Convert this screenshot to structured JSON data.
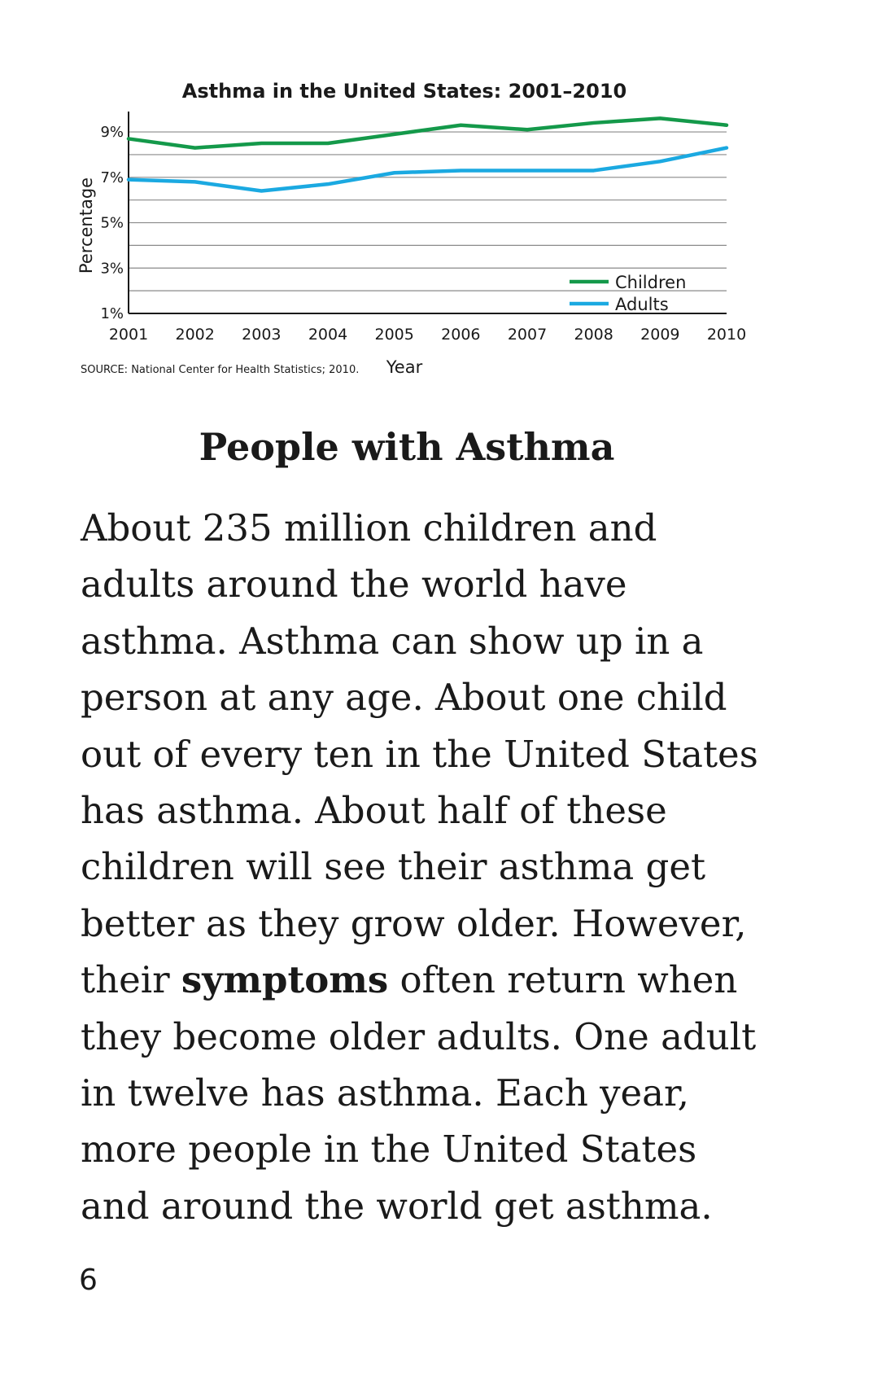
{
  "chart_data": {
    "type": "line",
    "title": "Asthma in the United States: 2001–2010",
    "xlabel": "Year",
    "ylabel": "Percentage",
    "x": [
      2001,
      2002,
      2003,
      2004,
      2005,
      2006,
      2007,
      2008,
      2009,
      2010
    ],
    "x_tick_labels": [
      "2001",
      "2002",
      "2003",
      "2004",
      "2005",
      "2006",
      "2007",
      "2008",
      "2009",
      "2010"
    ],
    "y_tick_labels": [
      "9%",
      "7%",
      "5%",
      "3%",
      "1%"
    ],
    "y_tick_values": [
      9,
      7,
      5,
      3,
      1
    ],
    "ylim": [
      1,
      9.9
    ],
    "grid": true,
    "legend_position": "bottom-right",
    "series": [
      {
        "name": "Children",
        "color": "#14994a",
        "values": [
          8.7,
          8.3,
          8.5,
          8.5,
          8.9,
          9.3,
          9.1,
          9.4,
          9.6,
          9.3
        ]
      },
      {
        "name": "Adults",
        "color": "#1ba9e1",
        "values": [
          6.9,
          6.8,
          6.4,
          6.7,
          7.2,
          7.3,
          7.3,
          7.3,
          7.7,
          8.3
        ]
      }
    ],
    "source": "SOURCE: National Center for Health Statistics; 2010."
  },
  "heading": "People with Asthma",
  "paragraph_lines": [
    {
      "text": "About 235 million children and"
    },
    {
      "text": "adults around the world have"
    },
    {
      "text": "asthma. Asthma can show up in a"
    },
    {
      "text": "person at any age. About one child"
    },
    {
      "text": "out of every ten in the United States"
    },
    {
      "text": "has asthma. About half of these"
    },
    {
      "text": "children will see their asthma get"
    },
    {
      "text": "better as they grow older. However,"
    },
    {
      "before": "their ",
      "bold": "symptoms",
      "after": " often return when"
    },
    {
      "text": "they become older adults. One adult"
    },
    {
      "text": "in twelve has asthma. Each year,"
    },
    {
      "text": "more people in the United States"
    },
    {
      "text": "and around the world get asthma."
    }
  ],
  "page_number": "6"
}
